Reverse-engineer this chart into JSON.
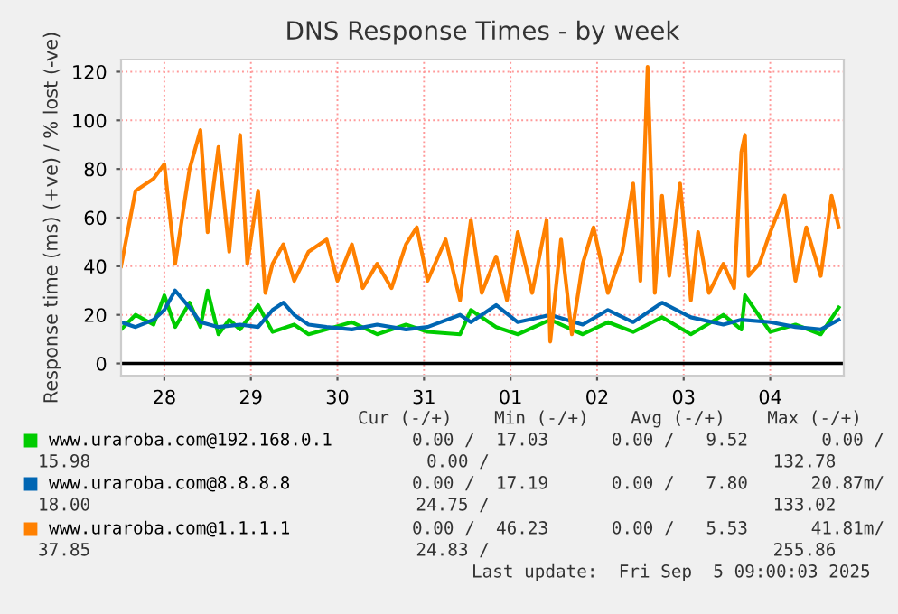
{
  "chart_data": {
    "type": "line",
    "title": "DNS Response Times - by week",
    "ylabel": "Response time (ms) (+ve) / % lost (-ve)",
    "xlim": [
      "2025-08-27T12:00",
      "2025-09-04T20:24"
    ],
    "ylim": [
      -5,
      125
    ],
    "xticks": [
      {
        "value": "2025-08-28",
        "label": "28"
      },
      {
        "value": "2025-08-29",
        "label": "29"
      },
      {
        "value": "2025-08-30",
        "label": "30"
      },
      {
        "value": "2025-08-31",
        "label": "31"
      },
      {
        "value": "2025-09-01",
        "label": "01"
      },
      {
        "value": "2025-09-02",
        "label": "02"
      },
      {
        "value": "2025-09-03",
        "label": "03"
      },
      {
        "value": "2025-09-04",
        "label": "04"
      }
    ],
    "yticks": [
      0,
      20,
      40,
      60,
      80,
      100,
      120
    ],
    "grid": true,
    "legend": "bottom",
    "line_style": "solid",
    "ref_lines": [
      {
        "axis": "y",
        "value": 0,
        "color": "#000000"
      }
    ],
    "series": [
      {
        "name": "www.uraroba.com@192.168.0.1",
        "color": "#00cc00",
        "x": [
          "2025-08-27T12:00",
          "2025-08-27T16:00",
          "2025-08-27T21:00",
          "2025-08-28T00:00",
          "2025-08-28T03:00",
          "2025-08-28T07:00",
          "2025-08-28T10:00",
          "2025-08-28T12:00",
          "2025-08-28T15:00",
          "2025-08-28T18:00",
          "2025-08-28T21:00",
          "2025-08-29T02:00",
          "2025-08-29T06:00",
          "2025-08-29T12:00",
          "2025-08-29T16:00",
          "2025-08-29T21:00",
          "2025-08-30T04:00",
          "2025-08-30T11:00",
          "2025-08-30T19:00",
          "2025-08-31T01:00",
          "2025-08-31T10:00",
          "2025-08-31T13:00",
          "2025-08-31T20:00",
          "2025-09-01T02:00",
          "2025-09-01T11:00",
          "2025-09-01T20:00",
          "2025-09-02T03:00",
          "2025-09-02T10:00",
          "2025-09-02T18:00",
          "2025-09-03T02:00",
          "2025-09-03T11:00",
          "2025-09-03T16:00",
          "2025-09-03T17:00",
          "2025-09-04T00:00",
          "2025-09-04T07:00",
          "2025-09-04T14:00",
          "2025-09-04T19:00"
        ],
        "values": [
          14,
          20,
          16,
          28,
          15,
          25,
          15,
          30,
          12,
          18,
          14,
          24,
          13,
          16,
          12,
          14,
          17,
          12,
          16,
          13,
          12,
          22,
          15,
          12,
          18,
          12,
          17,
          13,
          19,
          12,
          20,
          14,
          28,
          13,
          16,
          12,
          23
        ]
      },
      {
        "name": "www.uraroba.com@8.8.8.8",
        "color": "#0066b3",
        "x": [
          "2025-08-27T12:00",
          "2025-08-27T16:00",
          "2025-08-27T21:00",
          "2025-08-28T00:00",
          "2025-08-28T03:00",
          "2025-08-28T07:00",
          "2025-08-28T10:00",
          "2025-08-28T15:00",
          "2025-08-28T21:00",
          "2025-08-29T02:00",
          "2025-08-29T06:00",
          "2025-08-29T09:00",
          "2025-08-29T12:00",
          "2025-08-29T16:00",
          "2025-08-29T21:00",
          "2025-08-30T04:00",
          "2025-08-30T11:00",
          "2025-08-30T19:00",
          "2025-08-31T01:00",
          "2025-08-31T10:00",
          "2025-08-31T13:00",
          "2025-08-31T20:00",
          "2025-09-01T02:00",
          "2025-09-01T11:00",
          "2025-09-01T20:00",
          "2025-09-02T03:00",
          "2025-09-02T10:00",
          "2025-09-02T18:00",
          "2025-09-03T02:00",
          "2025-09-03T11:00",
          "2025-09-03T16:00",
          "2025-09-04T00:00",
          "2025-09-04T07:00",
          "2025-09-04T14:00",
          "2025-09-04T19:00"
        ],
        "values": [
          17,
          15,
          18,
          22,
          30,
          23,
          17,
          15,
          16,
          15,
          22,
          25,
          20,
          16,
          15,
          14,
          16,
          14,
          15,
          20,
          17,
          24,
          17,
          20,
          16,
          22,
          17,
          25,
          19,
          16,
          18,
          17,
          15,
          14,
          18
        ]
      },
      {
        "name": "www.uraroba.com@1.1.1.1",
        "color": "#ff8000",
        "x": [
          "2025-08-27T12:00",
          "2025-08-27T16:00",
          "2025-08-27T21:00",
          "2025-08-28T00:00",
          "2025-08-28T03:00",
          "2025-08-28T07:00",
          "2025-08-28T10:00",
          "2025-08-28T12:00",
          "2025-08-28T15:00",
          "2025-08-28T18:00",
          "2025-08-28T21:00",
          "2025-08-28T23:00",
          "2025-08-29T02:00",
          "2025-08-29T04:00",
          "2025-08-29T06:00",
          "2025-08-29T09:00",
          "2025-08-29T12:00",
          "2025-08-29T16:00",
          "2025-08-29T21:00",
          "2025-08-30T00:00",
          "2025-08-30T04:00",
          "2025-08-30T07:00",
          "2025-08-30T11:00",
          "2025-08-30T15:00",
          "2025-08-30T19:00",
          "2025-08-30T22:00",
          "2025-08-31T01:00",
          "2025-08-31T06:00",
          "2025-08-31T10:00",
          "2025-08-31T13:00",
          "2025-08-31T16:00",
          "2025-08-31T20:00",
          "2025-08-31T23:00",
          "2025-09-01T02:00",
          "2025-09-01T06:00",
          "2025-09-01T10:00",
          "2025-09-01T11:00",
          "2025-09-01T14:00",
          "2025-09-01T17:00",
          "2025-09-01T20:00",
          "2025-09-01T23:00",
          "2025-09-02T03:00",
          "2025-09-02T07:00",
          "2025-09-02T10:00",
          "2025-09-02T12:00",
          "2025-09-02T14:00",
          "2025-09-02T16:00",
          "2025-09-02T18:00",
          "2025-09-02T20:00",
          "2025-09-02T23:00",
          "2025-09-03T02:00",
          "2025-09-03T04:00",
          "2025-09-03T07:00",
          "2025-09-03T11:00",
          "2025-09-03T14:00",
          "2025-09-03T16:00",
          "2025-09-03T17:00",
          "2025-09-03T18:00",
          "2025-09-03T21:00",
          "2025-09-04T00:00",
          "2025-09-04T04:00",
          "2025-09-04T07:00",
          "2025-09-04T10:00",
          "2025-09-04T14:00",
          "2025-09-04T17:00",
          "2025-09-04T19:00"
        ],
        "values": [
          40,
          71,
          76,
          82,
          41,
          80,
          96,
          54,
          89,
          46,
          94,
          41,
          71,
          29,
          41,
          49,
          34,
          46,
          51,
          34,
          49,
          31,
          41,
          31,
          49,
          56,
          34,
          51,
          26,
          59,
          29,
          44,
          26,
          54,
          29,
          59,
          9,
          51,
          12,
          41,
          56,
          29,
          46,
          74,
          34,
          122,
          29,
          69,
          36,
          74,
          26,
          54,
          29,
          41,
          31,
          87,
          94,
          36,
          41,
          54,
          69,
          34,
          56,
          36,
          69,
          56
        ]
      }
    ],
    "annotations": [
      "Cur (-/+)    Min (-/+)    Avg (-/+)    Max (-/+)",
      "0.00 /  17.03      0.00 /   9.52       0.00 /",
      "15.98                                0.00 /                           132.78",
      "0.00 /  17.19      0.00 /   7.80      20.87m/",
      "18.00                               24.75 /                           133.02",
      "0.00 /  46.23      0.00 /   5.53      41.81m/",
      "37.85                               24.83 /                           255.86",
      "Last update:  Fri Sep  5 09:00:03 2025"
    ]
  }
}
